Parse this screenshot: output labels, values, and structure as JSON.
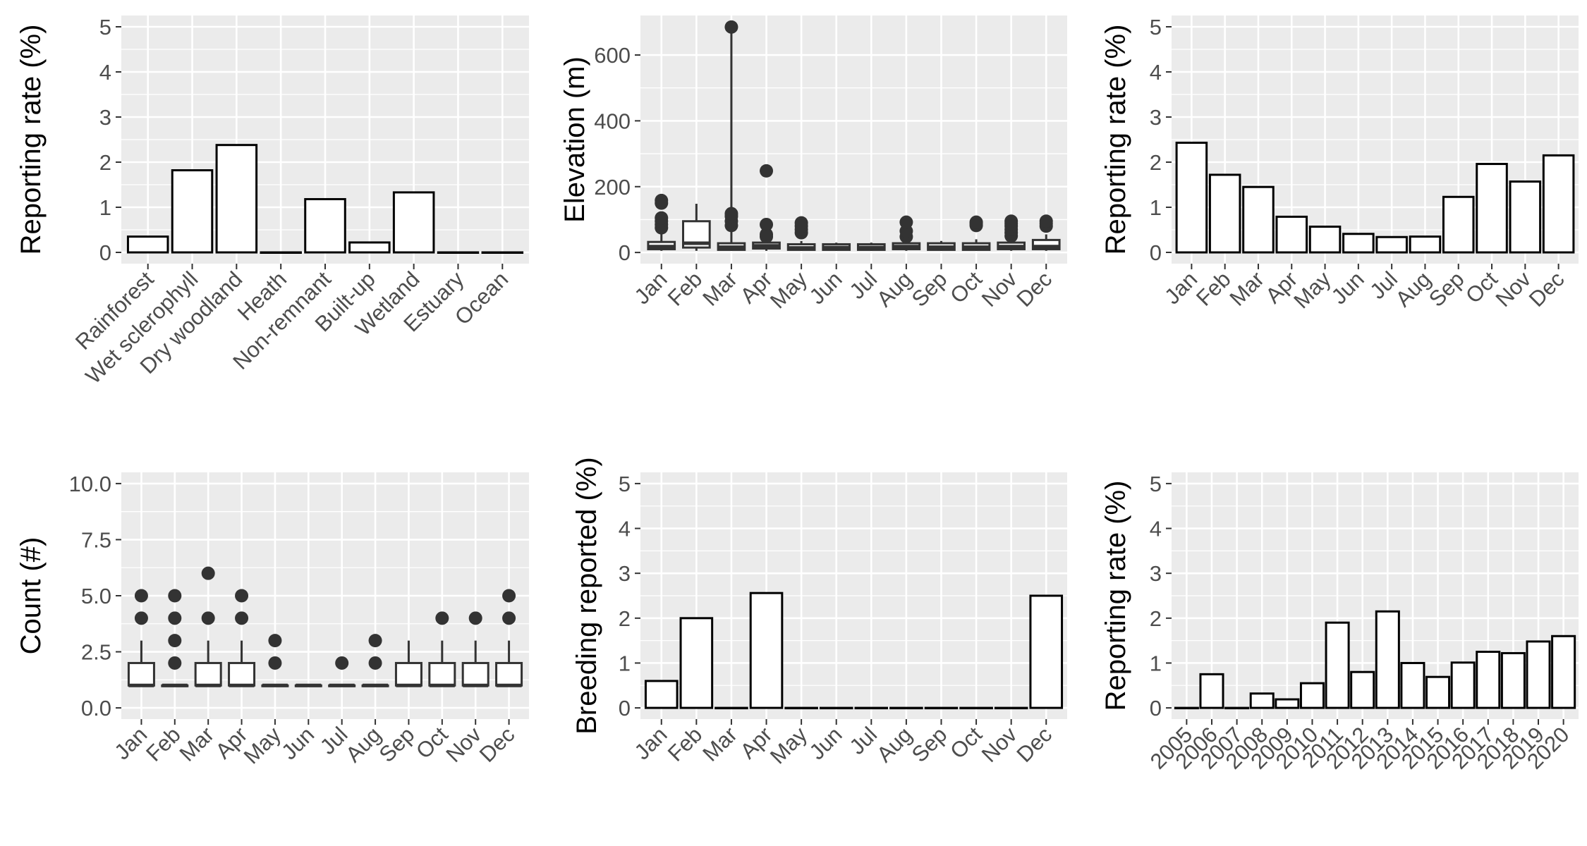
{
  "chart_data": [
    {
      "type": "bar",
      "id": "habitat",
      "categories": [
        "Rainforest",
        "Wet sclerophyll",
        "Dry woodland",
        "Heath",
        "Non-remnant",
        "Built-up",
        "Wetland",
        "Estuary",
        "Ocean"
      ],
      "values": [
        0.35,
        1.82,
        2.38,
        0.0,
        1.18,
        0.22,
        1.33,
        0.0,
        0.0
      ],
      "ylabel": "Reporting rate (%)",
      "xlabel": "",
      "ylim": [
        -0.25,
        5.25
      ],
      "yticks": [
        0,
        1,
        2,
        3,
        4,
        5
      ],
      "ytick_labels": [
        "0",
        "1",
        "2",
        "3",
        "4",
        "5"
      ],
      "xtick_rotation": 45,
      "grid": true
    },
    {
      "type": "boxplot",
      "id": "elevation",
      "categories": [
        "Jan",
        "Feb",
        "Mar",
        "Apr",
        "May",
        "Jun",
        "Jul",
        "Aug",
        "Sep",
        "Oct",
        "Nov",
        "Dec"
      ],
      "boxes": [
        {
          "whisker_low": 5,
          "q1": 10,
          "median": 18,
          "q3": 32,
          "whisker_high": 60,
          "outliers": [
            75,
            85,
            95,
            105,
            150,
            158
          ]
        },
        {
          "whisker_low": 5,
          "q1": 15,
          "median": 28,
          "q3": 95,
          "whisker_high": 148,
          "outliers": []
        },
        {
          "whisker_low": 5,
          "q1": 8,
          "median": 16,
          "q3": 28,
          "whisker_high": 685,
          "outliers": [
            685,
            82,
            95,
            110,
            118
          ]
        },
        {
          "whisker_low": 5,
          "q1": 12,
          "median": 20,
          "q3": 30,
          "whisker_high": 40,
          "outliers": [
            48,
            55,
            85,
            248
          ]
        },
        {
          "whisker_low": 5,
          "q1": 8,
          "median": 14,
          "q3": 25,
          "whisker_high": 35,
          "outliers": [
            60,
            70,
            80,
            90
          ]
        },
        {
          "whisker_low": 5,
          "q1": 8,
          "median": 15,
          "q3": 25,
          "whisker_high": 30,
          "outliers": []
        },
        {
          "whisker_low": 5,
          "q1": 8,
          "median": 15,
          "q3": 25,
          "whisker_high": 30,
          "outliers": []
        },
        {
          "whisker_low": 5,
          "q1": 10,
          "median": 18,
          "q3": 28,
          "whisker_high": 40,
          "outliers": [
            48,
            65,
            92
          ]
        },
        {
          "whisker_low": 5,
          "q1": 8,
          "median": 16,
          "q3": 28,
          "whisker_high": 35,
          "outliers": []
        },
        {
          "whisker_low": 5,
          "q1": 8,
          "median": 16,
          "q3": 28,
          "whisker_high": 40,
          "outliers": [
            82,
            88,
            92
          ]
        },
        {
          "whisker_low": 5,
          "q1": 10,
          "median": 18,
          "q3": 30,
          "whisker_high": 40,
          "outliers": [
            50,
            60,
            70,
            80,
            88,
            95
          ]
        },
        {
          "whisker_low": 5,
          "q1": 10,
          "median": 18,
          "q3": 38,
          "whisker_high": 55,
          "outliers": [
            80,
            88,
            95
          ]
        }
      ],
      "ylabel": "Elevation (m)",
      "xlabel": "",
      "ylim": [
        -34,
        720
      ],
      "yticks": [
        0,
        200,
        400,
        600
      ],
      "ytick_labels": [
        "0",
        "200",
        "400",
        "600"
      ],
      "xtick_rotation": 45,
      "grid": true
    },
    {
      "type": "bar",
      "id": "monthly-reporting",
      "categories": [
        "Jan",
        "Feb",
        "Mar",
        "Apr",
        "May",
        "Jun",
        "Jul",
        "Aug",
        "Sep",
        "Oct",
        "Nov",
        "Dec"
      ],
      "values": [
        2.43,
        1.72,
        1.45,
        0.79,
        0.57,
        0.41,
        0.34,
        0.35,
        1.23,
        1.96,
        1.57,
        2.15
      ],
      "ylabel": "Reporting rate (%)",
      "xlabel": "",
      "ylim": [
        -0.25,
        5.25
      ],
      "yticks": [
        0,
        1,
        2,
        3,
        4,
        5
      ],
      "ytick_labels": [
        "0",
        "1",
        "2",
        "3",
        "4",
        "5"
      ],
      "xtick_rotation": 45,
      "grid": true
    },
    {
      "type": "boxplot",
      "id": "count",
      "categories": [
        "Jan",
        "Feb",
        "Mar",
        "Apr",
        "May",
        "Jun",
        "Jul",
        "Aug",
        "Sep",
        "Oct",
        "Nov",
        "Dec"
      ],
      "boxes": [
        {
          "whisker_low": 1,
          "q1": 1,
          "median": 1,
          "q3": 2,
          "whisker_high": 3,
          "outliers": [
            4,
            5
          ]
        },
        {
          "whisker_low": 1,
          "q1": 1,
          "median": 1,
          "q3": 1,
          "whisker_high": 1,
          "outliers": [
            2,
            3,
            4,
            5
          ]
        },
        {
          "whisker_low": 1,
          "q1": 1,
          "median": 1,
          "q3": 2,
          "whisker_high": 3,
          "outliers": [
            4,
            6
          ]
        },
        {
          "whisker_low": 1,
          "q1": 1,
          "median": 1,
          "q3": 2,
          "whisker_high": 3,
          "outliers": [
            4,
            5
          ]
        },
        {
          "whisker_low": 1,
          "q1": 1,
          "median": 1,
          "q3": 1,
          "whisker_high": 1,
          "outliers": [
            2,
            3
          ]
        },
        {
          "whisker_low": 1,
          "q1": 1,
          "median": 1,
          "q3": 1,
          "whisker_high": 1,
          "outliers": []
        },
        {
          "whisker_low": 1,
          "q1": 1,
          "median": 1,
          "q3": 1,
          "whisker_high": 1,
          "outliers": [
            2
          ]
        },
        {
          "whisker_low": 1,
          "q1": 1,
          "median": 1,
          "q3": 1,
          "whisker_high": 1,
          "outliers": [
            2,
            3
          ]
        },
        {
          "whisker_low": 1,
          "q1": 1,
          "median": 1,
          "q3": 2,
          "whisker_high": 3,
          "outliers": []
        },
        {
          "whisker_low": 1,
          "q1": 1,
          "median": 1,
          "q3": 2,
          "whisker_high": 3,
          "outliers": [
            4
          ]
        },
        {
          "whisker_low": 1,
          "q1": 1,
          "median": 1,
          "q3": 2,
          "whisker_high": 3,
          "outliers": [
            4
          ]
        },
        {
          "whisker_low": 1,
          "q1": 1,
          "median": 1,
          "q3": 2,
          "whisker_high": 3,
          "outliers": [
            4,
            5
          ]
        }
      ],
      "ylabel": "Count (#)",
      "xlabel": "",
      "ylim": [
        -0.5,
        10.5
      ],
      "yticks": [
        0,
        2.5,
        5,
        7.5,
        10
      ],
      "ytick_labels": [
        "0.0",
        "2.5",
        "5.0",
        "7.5",
        "10.0"
      ],
      "xtick_rotation": 45,
      "grid": true
    },
    {
      "type": "bar",
      "id": "breeding",
      "categories": [
        "Jan",
        "Feb",
        "Mar",
        "Apr",
        "May",
        "Jun",
        "Jul",
        "Aug",
        "Sep",
        "Oct",
        "Nov",
        "Dec"
      ],
      "values": [
        0.6,
        2.0,
        0.0,
        2.56,
        0.0,
        0.0,
        0.0,
        0.0,
        0.0,
        0.0,
        0.0,
        2.5
      ],
      "ylabel": "Breeding reported (%)",
      "xlabel": "",
      "ylim": [
        -0.25,
        5.25
      ],
      "yticks": [
        0,
        1,
        2,
        3,
        4,
        5
      ],
      "ytick_labels": [
        "0",
        "1",
        "2",
        "3",
        "4",
        "5"
      ],
      "xtick_rotation": 45,
      "grid": true
    },
    {
      "type": "bar",
      "id": "yearly-reporting",
      "categories": [
        "2005",
        "2006",
        "2007",
        "2008",
        "2009",
        "2010",
        "2011",
        "2012",
        "2013",
        "2014",
        "2015",
        "2016",
        "2017",
        "2018",
        "2019",
        "2020"
      ],
      "values": [
        0.0,
        0.75,
        0.0,
        0.32,
        0.19,
        0.55,
        1.9,
        0.8,
        2.15,
        1.0,
        0.69,
        1.01,
        1.25,
        1.22,
        1.48,
        1.6
      ],
      "ylabel": "Reporting rate (%)",
      "xlabel": "",
      "ylim": [
        -0.25,
        5.25
      ],
      "yticks": [
        0,
        1,
        2,
        3,
        4,
        5
      ],
      "ytick_labels": [
        "0",
        "1",
        "2",
        "3",
        "4",
        "5"
      ],
      "xtick_rotation": 45,
      "grid": true
    }
  ]
}
